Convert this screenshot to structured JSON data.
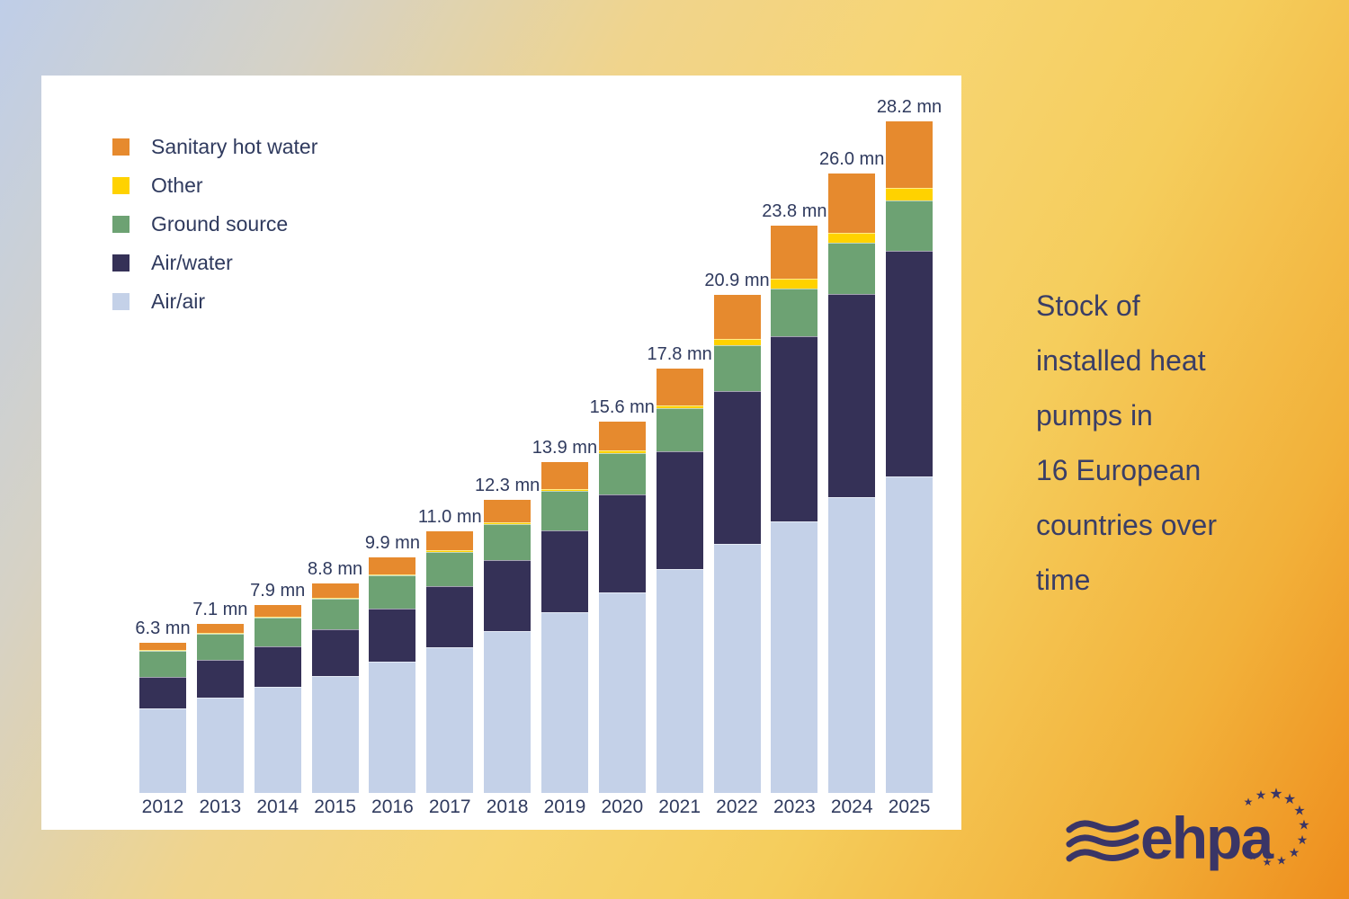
{
  "caption": {
    "text": "Stock of\ninstalled heat\npumps in\n16 European\ncountries over\ntime"
  },
  "legend": {
    "items": [
      {
        "label": "Sanitary hot water",
        "color": "#e68a2e"
      },
      {
        "label": "Other",
        "color": "#ffd200"
      },
      {
        "label": "Ground source",
        "color": "#6da273"
      },
      {
        "label": "Air/water",
        "color": "#353157"
      },
      {
        "label": "Air/air",
        "color": "#c4d1e8"
      }
    ]
  },
  "chart_data": {
    "type": "bar",
    "stacked": true,
    "title": "Stock of installed heat pumps in 16 European countries over time",
    "unit": "mn",
    "grid": false,
    "y_axis_visible": false,
    "legend_position": "top-left",
    "categories": [
      "2012",
      "2013",
      "2014",
      "2015",
      "2016",
      "2017",
      "2018",
      "2019",
      "2020",
      "2021",
      "2022",
      "2023",
      "2024",
      "2025"
    ],
    "series": [
      {
        "name": "Air/air",
        "color": "#c4d1e8",
        "values": [
          3.55,
          4.0,
          4.45,
          4.9,
          5.5,
          6.1,
          6.78,
          7.58,
          8.42,
          9.4,
          10.45,
          11.4,
          12.4,
          13.3
        ]
      },
      {
        "name": "Air/water",
        "color": "#353157",
        "values": [
          1.35,
          1.6,
          1.73,
          1.97,
          2.22,
          2.56,
          2.98,
          3.43,
          4.11,
          4.93,
          6.42,
          7.78,
          8.55,
          9.45
        ]
      },
      {
        "name": "Ground source",
        "color": "#6da273",
        "values": [
          1.08,
          1.08,
          1.2,
          1.3,
          1.42,
          1.46,
          1.54,
          1.66,
          1.72,
          1.83,
          1.92,
          2.0,
          2.15,
          2.1
        ]
      },
      {
        "name": "Other",
        "color": "#ffd200",
        "values": [
          0.02,
          0.02,
          0.02,
          0.03,
          0.04,
          0.05,
          0.05,
          0.08,
          0.11,
          0.12,
          0.26,
          0.4,
          0.42,
          0.53
        ]
      },
      {
        "name": "Sanitary hot water",
        "color": "#e68a2e",
        "values": [
          0.3,
          0.4,
          0.5,
          0.6,
          0.72,
          0.83,
          0.95,
          1.15,
          1.24,
          1.52,
          1.85,
          2.22,
          2.48,
          2.82
        ]
      }
    ],
    "totals": [
      "6.3 mn",
      "7.1 mn",
      "7.9 mn",
      "8.8 mn",
      "9.9 mn",
      "11.0 mn",
      "12.3 mn",
      "13.9 mn",
      "15.6 mn",
      "17.8 mn",
      "20.9 mn",
      "23.8 mn",
      "26.0 mn",
      "28.2 mn"
    ]
  },
  "logo": {
    "text": "ehpa"
  },
  "colors": {
    "panel": "#ffffff",
    "chart_text": "#2f3a5e",
    "caption_text": "#3a3e66",
    "logo": "#3a3566",
    "background_top_left": "#bfcee8",
    "background_mid_yellow": "#f7d573",
    "background_bottom_right": "#ee8d1d"
  }
}
